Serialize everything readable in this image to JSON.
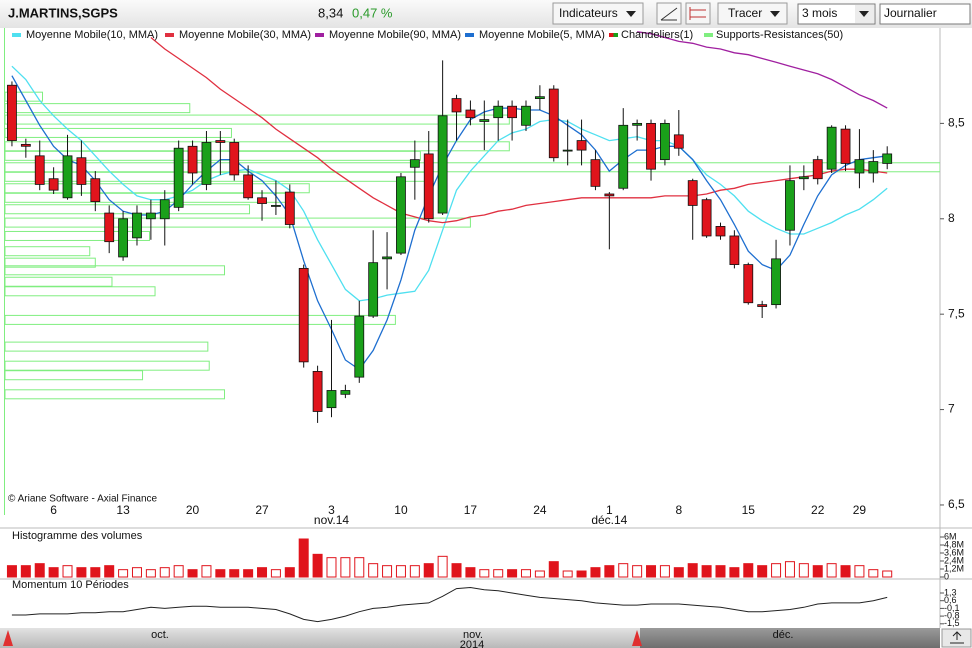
{
  "toolbar": {
    "symbol": "J.MARTINS,SGPS",
    "last": "8,34",
    "change": "0,47 %",
    "indicators_button": "Indicateurs",
    "draw_button": "Tracer",
    "period": "3 mois",
    "interval": "Journalier"
  },
  "navigator": {
    "labels": [
      "oct.",
      "nov.",
      "déc."
    ],
    "year": "2014"
  },
  "chart_data": [
    {
      "type": "candlestick",
      "credit": "© Ariane Software - Axial Finance",
      "categories": [
        null,
        null,
        null,
        "6",
        null,
        null,
        null,
        null,
        "13",
        null,
        null,
        null,
        null,
        "20",
        null,
        null,
        null,
        null,
        "27",
        null,
        null,
        null,
        null,
        "3",
        null,
        null,
        null,
        null,
        "10",
        null,
        null,
        null,
        null,
        "17",
        null,
        null,
        null,
        null,
        "24",
        null,
        null,
        null,
        null,
        "1",
        null,
        null,
        null,
        null,
        "8",
        null,
        null,
        null,
        null,
        "15",
        null,
        null,
        null,
        null,
        "22",
        null,
        null,
        "29",
        null,
        null
      ],
      "month_labels": [
        {
          "value": 23,
          "label": "nov.14"
        },
        {
          "value": 43,
          "label": "déc.14"
        }
      ],
      "candle_name": "Chandeliers(1)",
      "up_color": "#1aa01a",
      "down_color": "#e0141c",
      "open": [
        8.7,
        8.39,
        8.33,
        8.21,
        8.11,
        8.32,
        8.21,
        8.03,
        7.8,
        7.9,
        8.0,
        8.0,
        8.06,
        8.38,
        8.18,
        8.41,
        8.4,
        8.23,
        8.11,
        8.07,
        8.14,
        7.74,
        7.2,
        7.01,
        7.08,
        7.17,
        7.49,
        7.79,
        7.82,
        8.27,
        8.34,
        8.03,
        8.63,
        8.57,
        8.51,
        8.53,
        8.59,
        8.49,
        8.63,
        8.68,
        8.36,
        8.41,
        8.31,
        8.13,
        8.16,
        8.49,
        8.5,
        8.31,
        8.44,
        8.2,
        8.1,
        7.96,
        7.91,
        7.76,
        7.55,
        7.55,
        7.94,
        8.21,
        8.31,
        8.26,
        8.47,
        8.24,
        8.24,
        8.29
      ],
      "high": [
        8.72,
        8.42,
        8.41,
        8.27,
        8.44,
        8.41,
        8.25,
        8.07,
        8.04,
        8.07,
        8.1,
        8.15,
        8.41,
        8.41,
        8.46,
        8.46,
        8.42,
        8.28,
        8.15,
        8.2,
        8.18,
        7.76,
        7.23,
        7.47,
        7.13,
        7.57,
        7.94,
        7.93,
        8.24,
        8.41,
        8.46,
        8.83,
        8.65,
        8.62,
        8.62,
        8.62,
        8.62,
        8.62,
        8.7,
        8.7,
        8.52,
        8.52,
        8.36,
        8.14,
        8.58,
        8.52,
        8.52,
        8.52,
        8.57,
        8.21,
        8.11,
        7.98,
        7.94,
        7.77,
        7.57,
        7.89,
        8.28,
        8.28,
        8.33,
        8.49,
        8.49,
        8.47,
        8.36,
        8.38
      ],
      "low": [
        8.38,
        8.32,
        8.15,
        8.13,
        8.1,
        8.12,
        8.04,
        7.82,
        7.78,
        7.86,
        7.89,
        7.86,
        8.04,
        8.18,
        8.15,
        8.23,
        8.2,
        8.1,
        7.99,
        8.02,
        7.95,
        7.22,
        6.93,
        6.96,
        7.06,
        7.14,
        7.48,
        7.63,
        7.81,
        8.1,
        7.98,
        8.02,
        8.41,
        8.49,
        8.36,
        8.41,
        8.41,
        8.46,
        8.57,
        8.3,
        8.28,
        8.28,
        8.15,
        7.84,
        8.15,
        8.41,
        8.2,
        8.28,
        8.33,
        7.89,
        7.9,
        7.89,
        7.74,
        7.55,
        7.48,
        7.53,
        7.86,
        8.15,
        8.18,
        8.24,
        8.25,
        8.16,
        8.19,
        8.26
      ],
      "close": [
        8.41,
        8.38,
        8.18,
        8.15,
        8.33,
        8.18,
        8.09,
        7.88,
        8.0,
        8.03,
        8.03,
        8.1,
        8.37,
        8.24,
        8.4,
        8.4,
        8.23,
        8.11,
        8.08,
        8.07,
        7.97,
        7.25,
        6.99,
        7.1,
        7.1,
        7.49,
        7.77,
        7.8,
        8.22,
        8.31,
        8.0,
        8.54,
        8.56,
        8.53,
        8.52,
        8.59,
        8.53,
        8.59,
        8.64,
        8.32,
        8.36,
        8.36,
        8.17,
        8.12,
        8.49,
        8.5,
        8.26,
        8.5,
        8.37,
        8.07,
        7.91,
        7.91,
        7.76,
        7.56,
        7.54,
        7.79,
        8.2,
        8.22,
        8.21,
        8.48,
        8.29,
        8.31,
        8.3,
        8.34
      ],
      "series": [
        {
          "name": "Moyenne Mobile(10, MMA)",
          "color": "#4fe0f0",
          "values": [
            8.8,
            8.73,
            8.62,
            8.54,
            8.47,
            8.41,
            8.33,
            8.25,
            8.18,
            8.12,
            8.1,
            8.1,
            8.12,
            8.15,
            8.2,
            8.23,
            8.25,
            8.26,
            8.23,
            8.2,
            8.15,
            8.04,
            7.89,
            7.76,
            7.63,
            7.57,
            7.58,
            7.6,
            7.61,
            7.62,
            7.73,
            7.94,
            8.15,
            8.25,
            8.33,
            8.41,
            8.45,
            8.47,
            8.51,
            8.52,
            8.51,
            8.47,
            8.44,
            8.41,
            8.42,
            8.43,
            8.41,
            8.41,
            8.38,
            8.31,
            8.23,
            8.18,
            8.12,
            8.04,
            7.99,
            7.95,
            7.92,
            7.92,
            7.95,
            7.98,
            8.02,
            8.05,
            8.1,
            8.16
          ]
        },
        {
          "name": "Moyenne Mobile(30, MMA)",
          "color": "#e03040",
          "values": [
            null,
            null,
            null,
            null,
            null,
            null,
            null,
            null,
            null,
            null,
            8.95,
            8.89,
            8.84,
            8.79,
            8.74,
            8.68,
            8.63,
            8.58,
            8.53,
            8.47,
            8.42,
            8.37,
            8.32,
            8.26,
            8.21,
            8.16,
            8.11,
            8.07,
            8.03,
            8.01,
            7.99,
            7.98,
            7.99,
            8.01,
            8.02,
            8.04,
            8.05,
            8.07,
            8.08,
            8.09,
            8.1,
            8.11,
            8.11,
            8.11,
            8.11,
            8.11,
            8.11,
            8.12,
            8.12,
            8.12,
            8.13,
            8.15,
            8.16,
            8.18,
            8.19,
            8.2,
            8.21,
            8.22,
            8.23,
            8.25,
            8.26,
            8.26,
            8.25,
            8.24
          ]
        },
        {
          "name": "Moyenne Mobile(90, MMA)",
          "color": "#a020a0",
          "values": [
            null,
            null,
            null,
            null,
            null,
            null,
            null,
            null,
            null,
            null,
            null,
            null,
            null,
            null,
            null,
            null,
            null,
            null,
            null,
            null,
            null,
            null,
            null,
            null,
            null,
            null,
            null,
            null,
            null,
            null,
            null,
            null,
            null,
            null,
            null,
            null,
            null,
            null,
            null,
            null,
            null,
            null,
            null,
            null,
            null,
            8.98,
            8.97,
            8.95,
            8.93,
            8.92,
            8.9,
            8.89,
            8.87,
            8.86,
            8.84,
            8.82,
            8.8,
            8.78,
            8.76,
            8.73,
            8.69,
            8.65,
            8.62,
            8.58
          ]
        },
        {
          "name": "Moyenne Mobile(5, MMA)",
          "color": "#1e6fd0",
          "values": [
            8.75,
            8.62,
            8.49,
            8.38,
            8.31,
            8.28,
            8.2,
            8.1,
            8.04,
            8.02,
            8.02,
            8.04,
            8.1,
            8.18,
            8.25,
            8.31,
            8.31,
            8.25,
            8.2,
            8.12,
            8.02,
            7.78,
            7.57,
            7.42,
            7.26,
            7.21,
            7.31,
            7.47,
            7.68,
            7.94,
            8.12,
            8.28,
            8.41,
            8.52,
            8.56,
            8.58,
            8.58,
            8.57,
            8.57,
            8.54,
            8.49,
            8.44,
            8.36,
            8.25,
            8.31,
            8.36,
            8.36,
            8.38,
            8.38,
            8.31,
            8.2,
            8.1,
            7.97,
            7.83,
            7.76,
            7.73,
            7.81,
            7.97,
            8.12,
            8.23,
            8.28,
            8.31,
            8.32,
            8.33
          ]
        }
      ],
      "supports": {
        "name": "Supports-Resistances(50)",
        "color": "#80ee80",
        "levels": [
          8.64,
          8.58,
          8.52,
          8.45,
          8.38,
          8.33,
          8.27,
          8.22,
          8.16,
          8.11,
          8.05,
          7.98,
          7.91,
          7.83,
          7.77,
          7.73,
          7.67,
          7.62,
          7.47,
          7.33,
          7.23,
          7.18,
          7.08
        ],
        "values": [
          2.7,
          13.3,
          36.3,
          16.3,
          36.3,
          29.9,
          67.3,
          30.6,
          21.9,
          20.5,
          17.6,
          33.5,
          10.4,
          6.1,
          6.5,
          15.8,
          7.7,
          10.8,
          28.1,
          14.6,
          14.7,
          9.9,
          15.8
        ]
      },
      "xlim": [
        -0.5,
        66.8
      ],
      "ylim": [
        6.45,
        9.0
      ],
      "yticks": [
        {
          "value": 6.5,
          "label": "6,5"
        },
        7,
        {
          "value": 7.5,
          "label": "7,5"
        },
        8,
        {
          "value": 8.5,
          "label": "8,5"
        }
      ]
    },
    {
      "type": "bar",
      "title": "Histogramme des volumes",
      "color": "#e0141c",
      "values": [
        1700000,
        1700000,
        2000000,
        1400000,
        1700000,
        1400000,
        1400000,
        1700000,
        1100000,
        1400000,
        1100000,
        1400000,
        1700000,
        1100000,
        1700000,
        1100000,
        1100000,
        1100000,
        1400000,
        1100000,
        1400000,
        5700000,
        3400000,
        2900000,
        2900000,
        2900000,
        2000000,
        1700000,
        1700000,
        1700000,
        2000000,
        3100000,
        2000000,
        1400000,
        1100000,
        1100000,
        1100000,
        1100000,
        900000,
        2300000,
        900000,
        900000,
        1400000,
        1700000,
        2000000,
        1700000,
        1700000,
        1700000,
        1400000,
        2000000,
        1700000,
        1700000,
        1400000,
        2000000,
        1700000,
        2000000,
        2300000,
        2000000,
        1700000,
        2000000,
        1700000,
        1700000,
        1100000,
        900000
      ],
      "ylim": [
        0,
        6900000
      ],
      "yticks": [
        0,
        {
          "value": 1200000,
          "label": "1,2M"
        },
        {
          "value": 2400000,
          "label": "2,4M"
        },
        {
          "value": 3600000,
          "label": "3,6M"
        },
        {
          "value": 4800000,
          "label": "4,8M"
        },
        {
          "value": 6000000,
          "label": "6M"
        }
      ]
    },
    {
      "type": "line",
      "title": "Momentum 10 Périodes",
      "color": "#222222",
      "values": [
        -0.7,
        -0.7,
        -0.6,
        -0.6,
        -0.6,
        -0.5,
        -0.5,
        -0.4,
        -0.4,
        -0.2,
        0.0,
        -0.1,
        0.0,
        0.1,
        0.1,
        0.0,
        0.0,
        0.0,
        -0.1,
        -0.2,
        -0.6,
        -1.1,
        -1.3,
        -1.1,
        -0.8,
        -0.4,
        -0.1,
        0.0,
        0.2,
        0.3,
        0.4,
        1.0,
        1.7,
        1.8,
        1.6,
        1.5,
        1.3,
        1.1,
        0.9,
        0.8,
        0.7,
        0.6,
        0.4,
        0.3,
        0.2,
        0.2,
        0.3,
        0.3,
        0.3,
        0.2,
        0.1,
        0.0,
        -0.2,
        -0.4,
        -0.4,
        -0.3,
        -0.2,
        0.0,
        0.3,
        0.4,
        0.4,
        0.4,
        0.6,
        0.9
      ],
      "ylim": [
        -1.7,
        2.3
      ],
      "yticks": [
        {
          "value": -1.5,
          "label": "-1,5"
        },
        {
          "value": -0.8,
          "label": "-0,8"
        },
        {
          "value": -0.1,
          "label": "-0,1"
        },
        {
          "value": 0.6,
          "label": "0,6"
        },
        {
          "value": 1.3,
          "label": "1,3"
        }
      ]
    }
  ]
}
